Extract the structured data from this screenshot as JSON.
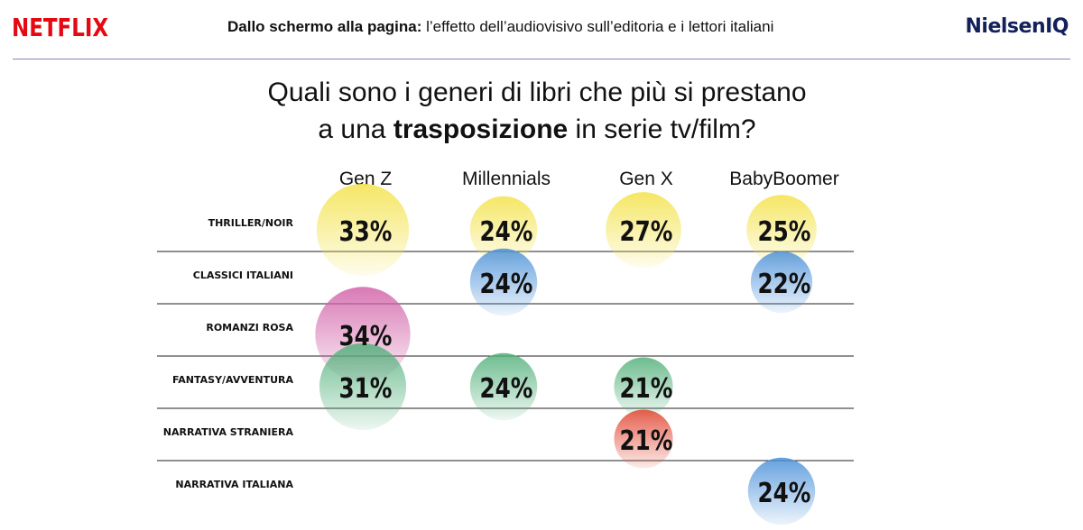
{
  "header": {
    "brand_left": "NETFLIX",
    "title_bold": "Dallo schermo alla pagina:",
    "title_rest": " l’effetto dell’audiovisivo sull’editoria e i lettori italiani",
    "brand_right": "NielsenIQ"
  },
  "question": {
    "line1": "Quali sono i generi di libri che più si prestano",
    "line2_pre": "a una ",
    "line2_bold": "trasposizione",
    "line2_post": " in serie tv/film?"
  },
  "chart_data": {
    "type": "bubble-matrix",
    "columns": [
      "Gen Z",
      "Millennials",
      "Gen X",
      "BabyBoomer"
    ],
    "rows": [
      {
        "label": "THRILLER/NOIR",
        "color": "#f3e24a",
        "values": [
          33,
          24,
          27,
          25
        ]
      },
      {
        "label": "CLASSICI ITALIANI",
        "color": "#4a90d9",
        "values": [
          null,
          24,
          null,
          22
        ]
      },
      {
        "label": "ROMANZI ROSA",
        "color": "#d262a8",
        "values": [
          34,
          null,
          null,
          null
        ]
      },
      {
        "label": "FANTASY/AVVENTURA",
        "color": "#52b07a",
        "values": [
          31,
          24,
          21,
          null
        ]
      },
      {
        "label": "NARRATIVA STRANIERA",
        "color": "#e0432f",
        "values": [
          null,
          null,
          21,
          null
        ]
      },
      {
        "label": "NARRATIVA ITALIANA",
        "color": "#4a90d9",
        "values": [
          null,
          null,
          null,
          24
        ]
      }
    ],
    "unit": "%"
  }
}
